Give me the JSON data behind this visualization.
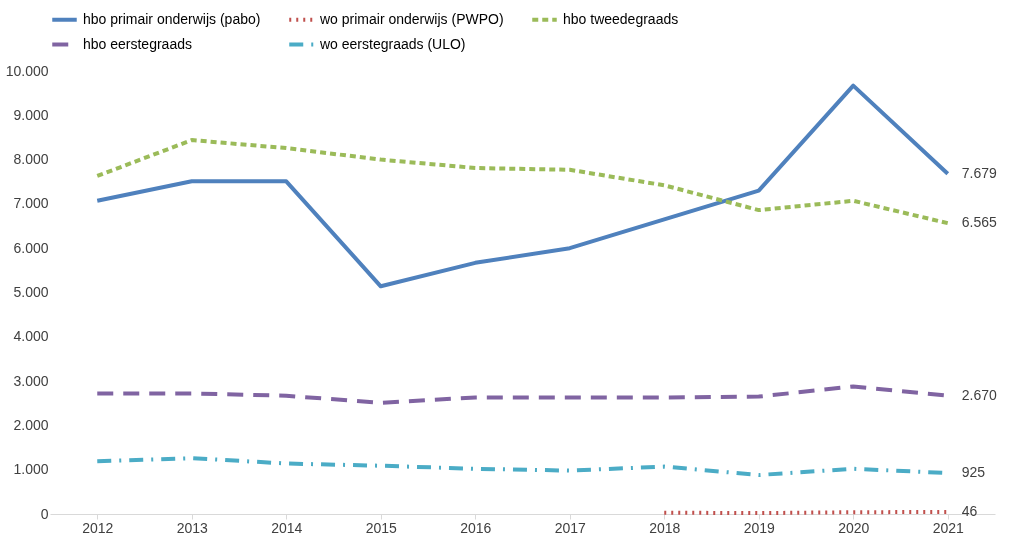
{
  "chart_data": {
    "type": "line",
    "categories": [
      "2012",
      "2013",
      "2014",
      "2015",
      "2016",
      "2017",
      "2018",
      "2019",
      "2020",
      "2021"
    ],
    "series": [
      {
        "name": "hbo primair onderwijs (pabo)",
        "color": "#4f81bd",
        "line_style": "solid",
        "values": [
          7070,
          7510,
          7510,
          5140,
          5670,
          6000,
          6650,
          7300,
          9670,
          7679
        ],
        "value_labels": [
          null,
          null,
          null,
          null,
          null,
          null,
          null,
          null,
          null,
          "7.679"
        ]
      },
      {
        "name": "wo primair onderwijs (PWPO)",
        "color": "#c0504d",
        "line_style": "dotted",
        "values": [
          null,
          null,
          null,
          null,
          null,
          null,
          30,
          20,
          40,
          46
        ],
        "value_labels": [
          null,
          null,
          null,
          null,
          null,
          null,
          null,
          null,
          null,
          "46"
        ]
      },
      {
        "name": "hbo tweedegraads",
        "color": "#9bbb59",
        "line_style": "dashed",
        "values": [
          7630,
          8440,
          8260,
          8000,
          7810,
          7770,
          7420,
          6860,
          7070,
          6565
        ],
        "value_labels": [
          null,
          null,
          null,
          null,
          null,
          null,
          null,
          null,
          null,
          "6.565"
        ]
      },
      {
        "name": "hbo eerstegraads",
        "color": "#8064a2",
        "line_style": "longdash",
        "values": [
          2720,
          2720,
          2670,
          2510,
          2630,
          2630,
          2630,
          2650,
          2880,
          2670
        ],
        "value_labels": [
          null,
          null,
          null,
          null,
          null,
          null,
          null,
          null,
          null,
          "2.670"
        ]
      },
      {
        "name": "wo eerstegraads (ULO)",
        "color": "#4bacc6",
        "line_style": "dashdot",
        "values": [
          1190,
          1260,
          1140,
          1090,
          1020,
          980,
          1070,
          880,
          1020,
          925
        ],
        "value_labels": [
          null,
          null,
          null,
          null,
          null,
          null,
          null,
          null,
          null,
          "925"
        ]
      }
    ],
    "ylim": [
      0,
      10000
    ],
    "yticks": [
      0,
      {
        "value": 1000,
        "label": "1.000"
      },
      {
        "value": 2000,
        "label": "2.000"
      },
      {
        "value": 3000,
        "label": "3.000"
      },
      {
        "value": 4000,
        "label": "4.000"
      },
      {
        "value": 5000,
        "label": "5.000"
      },
      {
        "value": 6000,
        "label": "6.000"
      },
      {
        "value": 7000,
        "label": "7.000"
      },
      {
        "value": 8000,
        "label": "8.000"
      },
      {
        "value": 9000,
        "label": "9.000"
      },
      {
        "value": 10000,
        "label": "10.000"
      }
    ],
    "grid": false,
    "legend": "top",
    "marker": "none"
  }
}
